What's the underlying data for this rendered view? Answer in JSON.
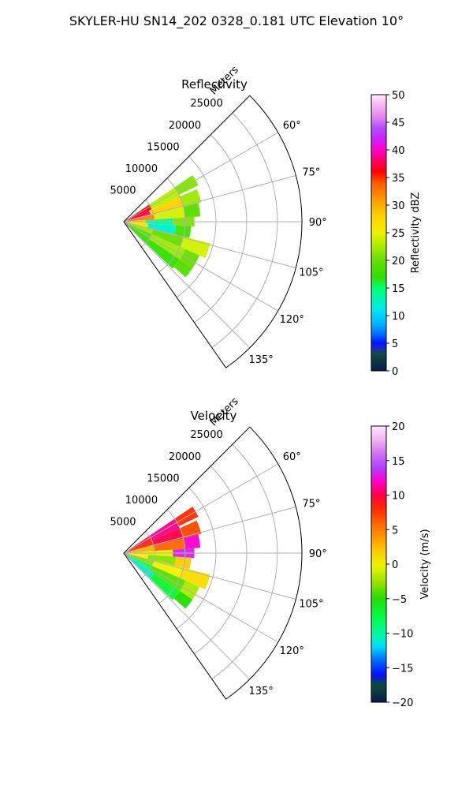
{
  "figure": {
    "suptitle": "SKYLER-HU  SN14_202  0328_0.181 UTC Elevation 10°"
  },
  "chart_data": [
    {
      "type": "heatmap",
      "projection": "polar",
      "title": "Reflectivity",
      "radial_axis_label": "Meters",
      "radial_ticks": [
        5000,
        10000,
        15000,
        20000,
        25000
      ],
      "radial_tick_labels": [
        "5000",
        "10000",
        "15000",
        "20000",
        "25000"
      ],
      "rmax": 29000,
      "theta_range_deg": [
        45,
        145
      ],
      "theta_ticks_deg": [
        60,
        75,
        90,
        105,
        120,
        135
      ],
      "theta_tick_labels": [
        "60°",
        "75°",
        "90°",
        "105°",
        "120°",
        "135°"
      ],
      "grid": true,
      "colorbar": {
        "label": "Reflectivity dBZ",
        "min": 0,
        "max": 50,
        "ticks": [
          0,
          5,
          10,
          15,
          20,
          25,
          30,
          35,
          40,
          45,
          50
        ],
        "tick_labels": [
          "0",
          "5",
          "10",
          "15",
          "20",
          "25",
          "30",
          "35",
          "40",
          "45",
          "50"
        ],
        "stops": [
          [
            0,
            "#0a1a4a"
          ],
          [
            3,
            "#0f4a3a"
          ],
          [
            4,
            "#1b2bbf"
          ],
          [
            5,
            "#0010ff"
          ],
          [
            6.5,
            "#0066ff"
          ],
          [
            8.5,
            "#00b4ff"
          ],
          [
            11,
            "#00e6f0"
          ],
          [
            13,
            "#00f5b4"
          ],
          [
            15,
            "#00ff6e"
          ],
          [
            17,
            "#33dd00"
          ],
          [
            20,
            "#66dd00"
          ],
          [
            23,
            "#b4f000"
          ],
          [
            25,
            "#f0f000"
          ],
          [
            28,
            "#ffd200"
          ],
          [
            31,
            "#ff9a00"
          ],
          [
            34,
            "#ff5a00"
          ],
          [
            36,
            "#ff0000"
          ],
          [
            38,
            "#ff0066"
          ],
          [
            40,
            "#ff00cc"
          ],
          [
            42,
            "#cc22ff"
          ],
          [
            44,
            "#b050ff"
          ],
          [
            46,
            "#e088ee"
          ],
          [
            48,
            "#f4b4f0"
          ],
          [
            50,
            "#fde8fd"
          ]
        ]
      },
      "data_summary": "Echoes between about 0 and 14000 m range over 55°–135° azimuth; highest reflectivity (30–42 dBZ) near 60–80° within 4000 m, bands of 20–30 dBZ elsewhere, 10–15 dBZ region near 88–100°.",
      "cells": [
        {
          "az": [
            56,
            66
          ],
          "r": [
            0,
            5000
          ],
          "value": 36
        },
        {
          "az": [
            66,
            76
          ],
          "r": [
            0,
            4500
          ],
          "value": 38
        },
        {
          "az": [
            76,
            86
          ],
          "r": [
            0,
            5000
          ],
          "value": 32
        },
        {
          "az": [
            86,
            94
          ],
          "r": [
            0,
            3500
          ],
          "value": 27
        },
        {
          "az": [
            94,
            104
          ],
          "r": [
            0,
            4000
          ],
          "value": 26
        },
        {
          "az": [
            104,
            114
          ],
          "r": [
            0,
            5000
          ],
          "value": 22
        },
        {
          "az": [
            114,
            124
          ],
          "r": [
            0,
            5000
          ],
          "value": 19
        },
        {
          "az": [
            124,
            134
          ],
          "r": [
            0,
            6000
          ],
          "value": 17
        },
        {
          "az": [
            56,
            66
          ],
          "r": [
            5000,
            10000
          ],
          "value": 23
        },
        {
          "az": [
            66,
            76
          ],
          "r": [
            4500,
            10000
          ],
          "value": 28
        },
        {
          "az": [
            76,
            86
          ],
          "r": [
            5000,
            10000
          ],
          "value": 24
        },
        {
          "az": [
            86,
            94
          ],
          "r": [
            3500,
            8000
          ],
          "value": 14
        },
        {
          "az": [
            94,
            104
          ],
          "r": [
            4000,
            8500
          ],
          "value": 12
        },
        {
          "az": [
            104,
            114
          ],
          "r": [
            5000,
            10000
          ],
          "value": 20
        },
        {
          "az": [
            114,
            124
          ],
          "r": [
            5000,
            11000
          ],
          "value": 22
        },
        {
          "az": [
            124,
            134
          ],
          "r": [
            6000,
            11000
          ],
          "value": 17
        },
        {
          "az": [
            56,
            64
          ],
          "r": [
            10000,
            13500
          ],
          "value": 21
        },
        {
          "az": [
            66,
            76
          ],
          "r": [
            10000,
            13000
          ],
          "value": 22
        },
        {
          "az": [
            76,
            86
          ],
          "r": [
            10000,
            12500
          ],
          "value": 19
        },
        {
          "az": [
            86,
            94
          ],
          "r": [
            8000,
            11500
          ],
          "value": 21
        },
        {
          "az": [
            94,
            104
          ],
          "r": [
            8500,
            11000
          ],
          "value": 18
        },
        {
          "az": [
            104,
            114
          ],
          "r": [
            10000,
            14500
          ],
          "value": 24
        },
        {
          "az": [
            114,
            124
          ],
          "r": [
            11000,
            13500
          ],
          "value": 20
        },
        {
          "az": [
            124,
            132
          ],
          "r": [
            11000,
            13500
          ],
          "value": 19
        }
      ]
    },
    {
      "type": "heatmap",
      "projection": "polar",
      "title": "Velocity",
      "radial_axis_label": "Meters",
      "radial_ticks": [
        5000,
        10000,
        15000,
        20000,
        25000
      ],
      "radial_tick_labels": [
        "5000",
        "10000",
        "15000",
        "20000",
        "25000"
      ],
      "rmax": 29000,
      "theta_range_deg": [
        45,
        145
      ],
      "theta_ticks_deg": [
        60,
        75,
        90,
        105,
        120,
        135
      ],
      "theta_tick_labels": [
        "60°",
        "75°",
        "90°",
        "105°",
        "120°",
        "135°"
      ],
      "grid": true,
      "colorbar": {
        "label": "Velocity (m/s)",
        "min": -20,
        "max": 20,
        "ticks": [
          -20,
          -15,
          -10,
          -5,
          0,
          5,
          10,
          15,
          20
        ],
        "tick_labels": [
          "−20",
          "−15",
          "−10",
          "−5",
          "0",
          "5",
          "10",
          "15",
          "20"
        ],
        "stops": [
          [
            -20,
            "#0a1a4a"
          ],
          [
            -17.5,
            "#0f4a3a"
          ],
          [
            -16,
            "#0010ff"
          ],
          [
            -14,
            "#0066ff"
          ],
          [
            -12,
            "#00d8ff"
          ],
          [
            -10.5,
            "#00f5b4"
          ],
          [
            -8,
            "#00ff50"
          ],
          [
            -5,
            "#22dd00"
          ],
          [
            -3,
            "#88e000"
          ],
          [
            -1,
            "#d0f000"
          ],
          [
            0,
            "#f0f000"
          ],
          [
            2,
            "#ffc800"
          ],
          [
            4,
            "#ff9600"
          ],
          [
            6,
            "#ff6400"
          ],
          [
            8,
            "#ff2a00"
          ],
          [
            10,
            "#ff0044"
          ],
          [
            12,
            "#ff00cc"
          ],
          [
            14,
            "#b040ff"
          ],
          [
            16,
            "#d070f0"
          ],
          [
            18,
            "#f0b4f0"
          ],
          [
            20,
            "#fde8fd"
          ]
        ]
      },
      "data_summary": "Outbound velocities (+8 to +12 m/s) over 58°–85° azimuth, near-zero (-2 to +3 m/s) around 85°–115°, inbound (-5 to -12 m/s) over 115°–135° close to the radar.",
      "cells": [
        {
          "az": [
            56,
            66
          ],
          "r": [
            0,
            5000
          ],
          "value": 9
        },
        {
          "az": [
            66,
            76
          ],
          "r": [
            0,
            5000
          ],
          "value": 8
        },
        {
          "az": [
            76,
            86
          ],
          "r": [
            0,
            5000
          ],
          "value": 3
        },
        {
          "az": [
            86,
            94
          ],
          "r": [
            0,
            3500
          ],
          "value": 1
        },
        {
          "az": [
            94,
            104
          ],
          "r": [
            0,
            4000
          ],
          "value": 0
        },
        {
          "az": [
            104,
            114
          ],
          "r": [
            0,
            5000
          ],
          "value": -3
        },
        {
          "az": [
            114,
            124
          ],
          "r": [
            0,
            5000
          ],
          "value": -8
        },
        {
          "az": [
            124,
            134
          ],
          "r": [
            0,
            6000
          ],
          "value": -11
        },
        {
          "az": [
            56,
            66
          ],
          "r": [
            5000,
            10000
          ],
          "value": 11
        },
        {
          "az": [
            66,
            76
          ],
          "r": [
            5000,
            10000
          ],
          "value": 10
        },
        {
          "az": [
            76,
            86
          ],
          "r": [
            5000,
            10000
          ],
          "value": 6
        },
        {
          "az": [
            86,
            94
          ],
          "r": [
            3500,
            8000
          ],
          "value": 0
        },
        {
          "az": [
            94,
            104
          ],
          "r": [
            4000,
            8500
          ],
          "value": -3
        },
        {
          "az": [
            104,
            114
          ],
          "r": [
            5000,
            10000
          ],
          "value": 0
        },
        {
          "az": [
            114,
            124
          ],
          "r": [
            5000,
            11000
          ],
          "value": -4
        },
        {
          "az": [
            124,
            134
          ],
          "r": [
            6000,
            11000
          ],
          "value": -7
        },
        {
          "az": [
            56,
            64
          ],
          "r": [
            10000,
            13500
          ],
          "value": 8
        },
        {
          "az": [
            66,
            76
          ],
          "r": [
            10000,
            13000
          ],
          "value": 7
        },
        {
          "az": [
            76,
            86
          ],
          "r": [
            10000,
            12500
          ],
          "value": 12
        },
        {
          "az": [
            86,
            94
          ],
          "r": [
            8000,
            11500
          ],
          "value": 13
        },
        {
          "az": [
            94,
            104
          ],
          "r": [
            8500,
            11000
          ],
          "value": 2
        },
        {
          "az": [
            104,
            114
          ],
          "r": [
            10000,
            14500
          ],
          "value": 1
        },
        {
          "az": [
            114,
            124
          ],
          "r": [
            11000,
            13500
          ],
          "value": -2
        },
        {
          "az": [
            124,
            132
          ],
          "r": [
            11000,
            13500
          ],
          "value": -5
        }
      ]
    }
  ]
}
